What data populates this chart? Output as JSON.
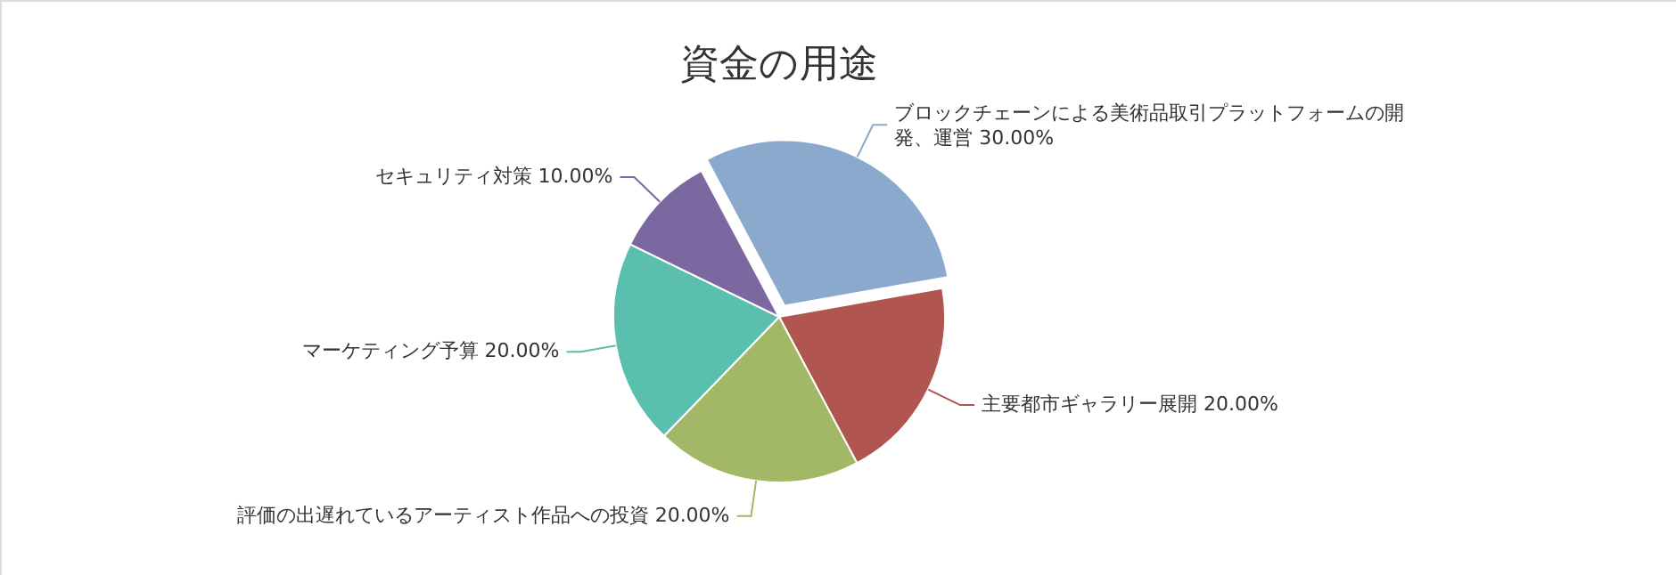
{
  "chart_data": {
    "type": "pie",
    "title": "資金の用途",
    "categories": [
      "ブロックチェーンによる美術品取引プラットフォームの開発、運営",
      "主要都市ギャラリー展開",
      "評価の出遅れているアーティスト作品への投資",
      "マーケティング予算",
      "セキュリティ対策"
    ],
    "values": [
      30,
      20,
      20,
      20,
      10
    ],
    "value_labels": [
      "30.00%",
      "20.00%",
      "20.00%",
      "20.00%",
      "10.00%"
    ],
    "colors": [
      "#8aa9cc",
      "#b0554f",
      "#a3b866",
      "#5abfae",
      "#7b68a0"
    ]
  }
}
